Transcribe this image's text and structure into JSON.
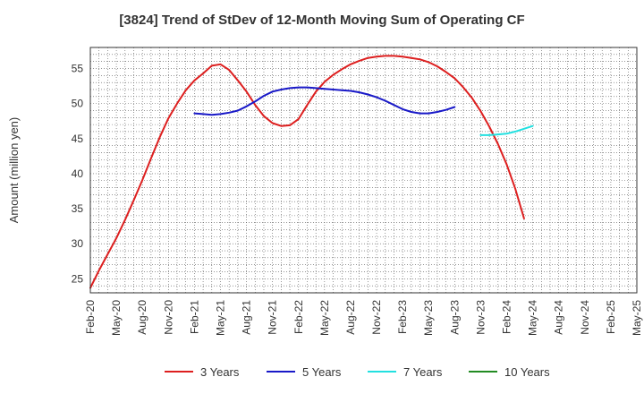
{
  "chart_data": {
    "type": "line",
    "title": "[3824]  Trend of StDev of 12-Month Moving Sum of Operating CF",
    "ylabel": "Amount (million yen)",
    "xlabel": "",
    "ylim": [
      23,
      58
    ],
    "yticks": [
      25,
      30,
      35,
      40,
      45,
      50,
      55
    ],
    "xtick_labels": [
      "Feb-20",
      "May-20",
      "Aug-20",
      "Nov-20",
      "Feb-21",
      "May-21",
      "Aug-21",
      "Nov-21",
      "Feb-22",
      "May-22",
      "Aug-22",
      "Nov-22",
      "Feb-23",
      "May-23",
      "Aug-23",
      "Nov-23",
      "Feb-24",
      "May-24",
      "Aug-24",
      "Nov-24",
      "Feb-25",
      "May-25"
    ],
    "x_range_months": [
      "Feb-20",
      "May-25"
    ],
    "grid": true,
    "legend_position": "bottom",
    "series": [
      {
        "name": "3 Years",
        "color": "#dd1f1f",
        "points": [
          [
            "Feb-20",
            23.7
          ],
          [
            "Mar-20",
            26.2
          ],
          [
            "Apr-20",
            28.5
          ],
          [
            "May-20",
            30.8
          ],
          [
            "Jun-20",
            33.4
          ],
          [
            "Jul-20",
            36.2
          ],
          [
            "Aug-20",
            39.1
          ],
          [
            "Sep-20",
            42.2
          ],
          [
            "Oct-20",
            45.2
          ],
          [
            "Nov-20",
            47.9
          ],
          [
            "Dec-20",
            50.0
          ],
          [
            "Jan-21",
            51.9
          ],
          [
            "Feb-21",
            53.3
          ],
          [
            "Mar-21",
            54.3
          ],
          [
            "Apr-21",
            55.4
          ],
          [
            "May-21",
            55.6
          ],
          [
            "Jun-21",
            54.8
          ],
          [
            "Jul-21",
            53.3
          ],
          [
            "Aug-21",
            51.7
          ],
          [
            "Sep-21",
            49.8
          ],
          [
            "Oct-21",
            48.2
          ],
          [
            "Nov-21",
            47.2
          ],
          [
            "Dec-21",
            46.8
          ],
          [
            "Jan-22",
            46.9
          ],
          [
            "Feb-22",
            47.8
          ],
          [
            "Mar-22",
            49.8
          ],
          [
            "Apr-22",
            51.7
          ],
          [
            "May-22",
            53.1
          ],
          [
            "Jun-22",
            54.1
          ],
          [
            "Jul-22",
            54.9
          ],
          [
            "Aug-22",
            55.6
          ],
          [
            "Sep-22",
            56.1
          ],
          [
            "Oct-22",
            56.5
          ],
          [
            "Nov-22",
            56.7
          ],
          [
            "Dec-22",
            56.8
          ],
          [
            "Jan-23",
            56.8
          ],
          [
            "Feb-23",
            56.7
          ],
          [
            "Mar-23",
            56.5
          ],
          [
            "Apr-23",
            56.3
          ],
          [
            "May-23",
            55.9
          ],
          [
            "Jun-23",
            55.3
          ],
          [
            "Jul-23",
            54.5
          ],
          [
            "Aug-23",
            53.6
          ],
          [
            "Sep-23",
            52.3
          ],
          [
            "Oct-23",
            50.8
          ],
          [
            "Nov-23",
            48.9
          ],
          [
            "Dec-23",
            46.7
          ],
          [
            "Jan-24",
            44.2
          ],
          [
            "Feb-24",
            41.3
          ],
          [
            "Mar-24",
            37.8
          ],
          [
            "Apr-24",
            33.6
          ]
        ]
      },
      {
        "name": "5 Years",
        "color": "#1919c8",
        "points": [
          [
            "Feb-21",
            48.6
          ],
          [
            "Mar-21",
            48.5
          ],
          [
            "Apr-21",
            48.4
          ],
          [
            "May-21",
            48.5
          ],
          [
            "Jun-21",
            48.7
          ],
          [
            "Jul-21",
            49.0
          ],
          [
            "Aug-21",
            49.6
          ],
          [
            "Sep-21",
            50.3
          ],
          [
            "Oct-21",
            51.1
          ],
          [
            "Nov-21",
            51.7
          ],
          [
            "Dec-21",
            52.0
          ],
          [
            "Jan-22",
            52.2
          ],
          [
            "Feb-22",
            52.3
          ],
          [
            "Mar-22",
            52.3
          ],
          [
            "Apr-22",
            52.2
          ],
          [
            "May-22",
            52.1
          ],
          [
            "Jun-22",
            52.0
          ],
          [
            "Jul-22",
            51.9
          ],
          [
            "Aug-22",
            51.8
          ],
          [
            "Sep-22",
            51.6
          ],
          [
            "Oct-22",
            51.3
          ],
          [
            "Nov-22",
            50.9
          ],
          [
            "Dec-22",
            50.4
          ],
          [
            "Jan-23",
            49.8
          ],
          [
            "Feb-23",
            49.2
          ],
          [
            "Mar-23",
            48.8
          ],
          [
            "Apr-23",
            48.6
          ],
          [
            "May-23",
            48.6
          ],
          [
            "Jun-23",
            48.8
          ],
          [
            "Jul-23",
            49.1
          ],
          [
            "Aug-23",
            49.5
          ]
        ]
      },
      {
        "name": "7 Years",
        "color": "#22e0e0",
        "points": [
          [
            "Nov-23",
            45.5
          ],
          [
            "Dec-23",
            45.5
          ],
          [
            "Jan-24",
            45.6
          ],
          [
            "Feb-24",
            45.7
          ],
          [
            "Mar-24",
            46.0
          ],
          [
            "Apr-24",
            46.4
          ],
          [
            "May-24",
            46.8
          ]
        ]
      },
      {
        "name": "10 Years",
        "color": "#228b22",
        "points": []
      }
    ]
  }
}
